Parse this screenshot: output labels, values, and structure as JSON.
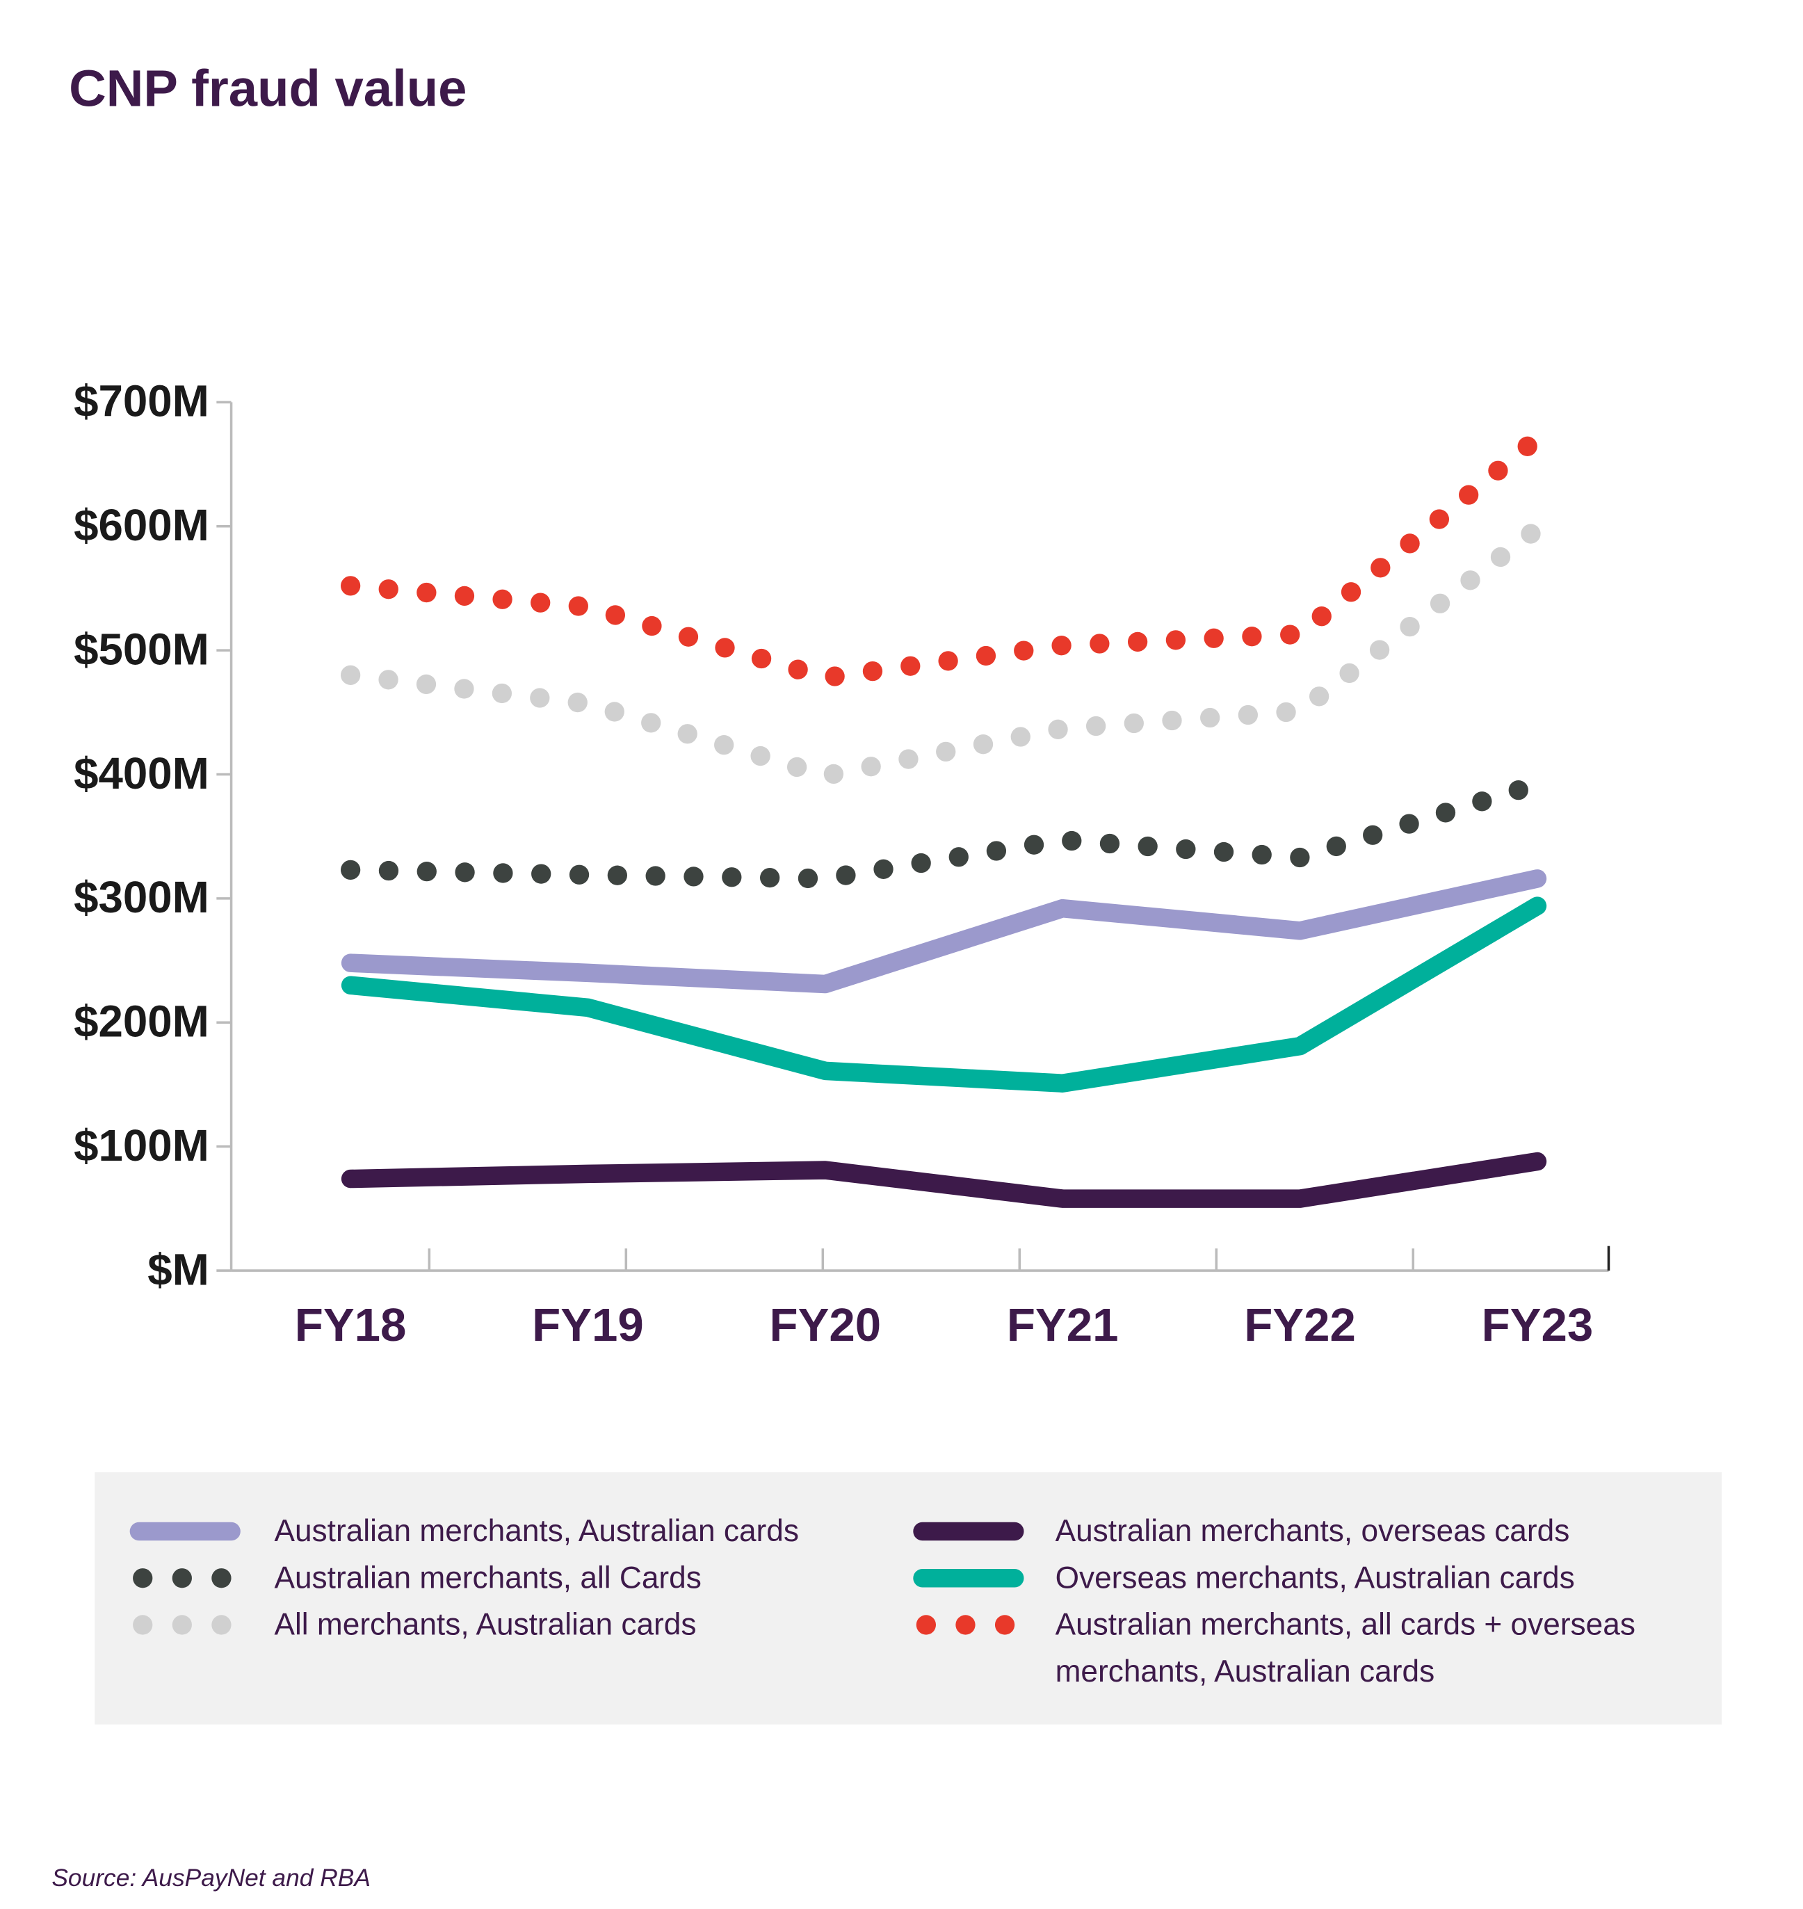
{
  "chart_data": {
    "type": "line",
    "title": "CNP fraud value",
    "categories": [
      "FY18",
      "FY19",
      "FY20",
      "FY21",
      "FY22",
      "FY23"
    ],
    "series": [
      {
        "name": "Australian merchants, Australian cards",
        "color": "#9b99cc",
        "style": "solid",
        "values": [
          248,
          240,
          231,
          292,
          274,
          316
        ]
      },
      {
        "name": "Australian merchants, all Cards",
        "color": "#3d4340",
        "style": "dotted",
        "values": [
          323,
          319,
          316,
          347,
          333,
          392
        ]
      },
      {
        "name": "All merchants, Australian cards",
        "color": "#d0d0d0",
        "style": "dotted",
        "values": [
          480,
          457,
          399,
          437,
          451,
          598
        ]
      },
      {
        "name": "Australian merchants, overseas cards",
        "color": "#3d1a4a",
        "style": "solid",
        "values": [
          74,
          78,
          81,
          58,
          58,
          88
        ]
      },
      {
        "name": "Overseas merchants, Australian cards",
        "color": "#00b09b",
        "style": "solid",
        "values": [
          230,
          212,
          161,
          151,
          181,
          294
        ]
      },
      {
        "name": "Australian merchants, all cards + overseas merchants, Australian cards",
        "color": "#e8392a",
        "style": "dotted",
        "values": [
          552,
          535,
          478,
          504,
          513,
          671
        ]
      }
    ],
    "ylim": [
      0,
      700
    ],
    "yticks": [
      {
        "value": 0,
        "label": "$M"
      },
      {
        "value": 100,
        "label": "$100M"
      },
      {
        "value": 200,
        "label": "$200M"
      },
      {
        "value": 300,
        "label": "$300M"
      },
      {
        "value": 400,
        "label": "$400M"
      },
      {
        "value": 500,
        "label": "$500M"
      },
      {
        "value": 600,
        "label": "$600M"
      },
      {
        "value": 700,
        "label": "$700M"
      }
    ],
    "source": "Source: AusPayNet and RBA"
  }
}
